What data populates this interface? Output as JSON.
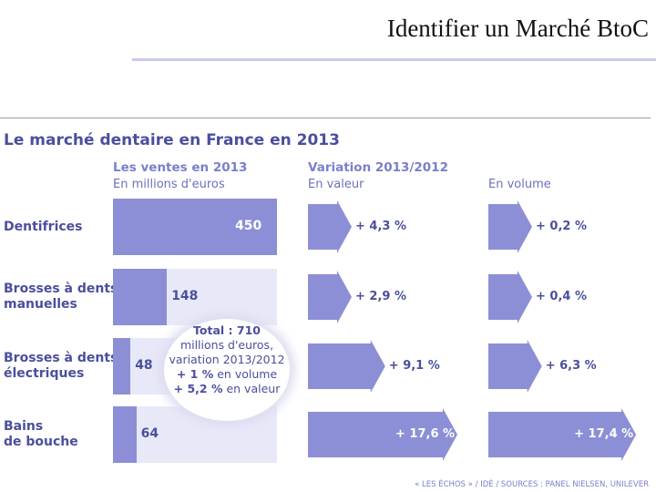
{
  "slide": {
    "title": "Identifier un Marché BtoC"
  },
  "chart_data": {
    "type": "bar",
    "title": "Le marché dentaire en France en 2013",
    "columns": {
      "sales": {
        "title": "Les ventes en 2013",
        "subtitle": "En millions d'euros"
      },
      "variation": {
        "title": "Variation 2013/2012",
        "value_label": "En valeur",
        "volume_label": "En volume"
      }
    },
    "categories": [
      "Dentifrices",
      "Brosses à dents manuelles",
      "Brosses à dents électriques",
      "Bains de bouche"
    ],
    "rows": [
      {
        "label_lines": [
          "Dentifrices"
        ],
        "sales": 450,
        "value_change": 4.3,
        "volume_change": 0.2,
        "sales_text": "450",
        "value_text": "+ 4,3 %",
        "volume_text": "+ 0,2 %"
      },
      {
        "label_lines": [
          "Brosses à dents",
          "manuelles"
        ],
        "sales": 148,
        "value_change": 2.9,
        "volume_change": 0.4,
        "sales_text": "148",
        "value_text": "+ 2,9 %",
        "volume_text": "+ 0,4 %"
      },
      {
        "label_lines": [
          "Brosses à dents",
          "électriques"
        ],
        "sales": 48,
        "value_change": 9.1,
        "volume_change": 6.3,
        "sales_text": "48",
        "value_text": "+ 9,1 %",
        "volume_text": "+ 6,3 %"
      },
      {
        "label_lines": [
          "Bains",
          "de bouche"
        ],
        "sales": 64,
        "value_change": 17.6,
        "volume_change": 17.4,
        "sales_text": "64",
        "value_text": "+ 17,6 %",
        "volume_text": "+ 17,4 %"
      }
    ],
    "sales_max": 450,
    "variation_max": 17.6,
    "total_box": {
      "line1": "Total : 710",
      "line2": "millions d'euros,",
      "line3": "variation 2013/2012",
      "line4_bold": "+ 1 %",
      "line4_rest": " en volume",
      "line5_bold": "+ 5,2 %",
      "line5_rest": " en valeur"
    },
    "source": "« LES ÉCHOS » / IDÉ / SOURCES : PANEL NIELSEN, UNILEVER"
  },
  "colors": {
    "bar": "#8c8fd6",
    "band": "#e8e9f8",
    "title": "#4b4f9c",
    "header": "#7a7fcc"
  }
}
